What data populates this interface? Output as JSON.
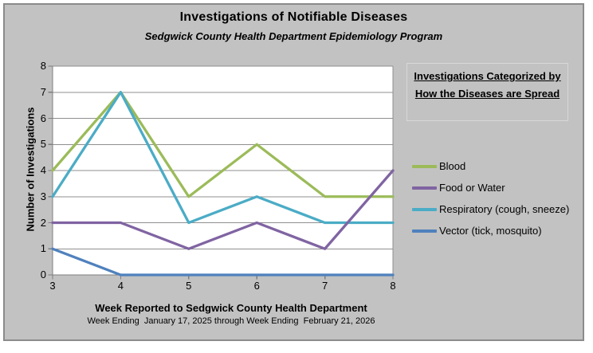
{
  "style": {
    "canvas_background": "#ffffff",
    "chart_background": "#c2c2c2",
    "chart_border": "#8b8b8b",
    "plot_background": "#ffffff",
    "gridline_color": "#8f8f8f",
    "axis_color": "#7f7f7f",
    "text_color": "#000000"
  },
  "legend": {
    "heading": "Investigations Categorized by How the Diseases are Spread"
  },
  "chart_data": {
    "type": "line",
    "title": "Investigations of Notifiable Diseases",
    "subtitle": "Sedgwick County Health Department Epidemiology Program",
    "x": [
      3,
      4,
      5,
      6,
      7,
      8
    ],
    "series": [
      {
        "name": "Blood",
        "color": "#9bbb59",
        "values": [
          4,
          7,
          3,
          5,
          3,
          3
        ]
      },
      {
        "name": "Food or Water",
        "color": "#8064a2",
        "values": [
          2,
          2,
          1,
          2,
          1,
          4
        ]
      },
      {
        "name": "Respiratory (cough, sneeze)",
        "color": "#4bacc6",
        "values": [
          3,
          7,
          2,
          3,
          2,
          2
        ]
      },
      {
        "name": "Vector (tick, mosquito)",
        "color": "#4f81bd",
        "values": [
          1,
          0,
          0,
          0,
          0,
          0
        ]
      }
    ],
    "draw_order": [
      0,
      2,
      1,
      3
    ],
    "xlabel": "Week Reported to Sedgwick County Health Department",
    "xlabel_note": "Week Ending  January 17, 2025 through Week Ending  February 21, 2026",
    "ylabel": "Number of Investigations",
    "ylim": [
      0,
      8
    ],
    "yticks": [
      0,
      1,
      2,
      3,
      4,
      5,
      6,
      7,
      8
    ],
    "grid": true,
    "legend_position": "right",
    "legend_title": "Investigations Categorized by How the Diseases are Spread"
  }
}
